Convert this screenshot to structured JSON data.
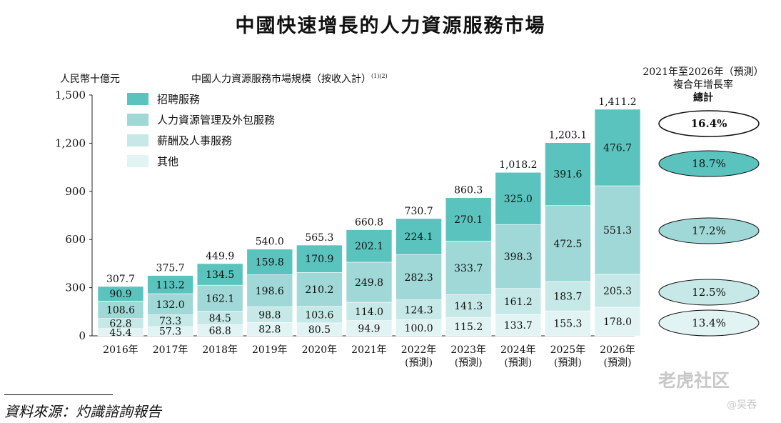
{
  "title": "中國快速增長的人力資源服務市場",
  "unit_label": "人民幣十億元",
  "subtitle": "中國人力資源服務市場規模（按收入計）",
  "subtitle_note": "(1)(2)",
  "cagr_header": {
    "line1": "2021年至2026年（預測）",
    "line2": "複合年增長率",
    "total_label": "總計"
  },
  "source": "資料來源：灼識諮詢報告",
  "watermark": "老虎社区",
  "watermark_author": "@吴吞",
  "colors": {
    "recruitment": "#5bc3be",
    "hr_outsourcing": "#9fd8d6",
    "payroll": "#c6e9e8",
    "other": "#e1f3f3"
  },
  "chart_data": {
    "type": "bar",
    "stacked": true,
    "title": "中國人力資源服務市場規模（按收入計）",
    "ylabel": "人民幣十億元",
    "ylim": [
      0,
      1500
    ],
    "yticks": [
      0,
      300,
      600,
      900,
      1200,
      1500
    ],
    "ytick_labels": [
      "0",
      "300",
      "600",
      "900",
      "1,200",
      "1,500"
    ],
    "categories": [
      "2016年",
      "2017年",
      "2018年",
      "2019年",
      "2020年",
      "2021年",
      "2022年",
      "2023年",
      "2024年",
      "2025年",
      "2026年"
    ],
    "category_notes": [
      "",
      "",
      "",
      "",
      "",
      "",
      "(預測)",
      "(預測)",
      "(預測)",
      "(預測)",
      "(預測)"
    ],
    "series": [
      {
        "name": "其他",
        "values": [
          45.4,
          57.3,
          68.8,
          82.8,
          80.5,
          94.9,
          100.0,
          115.2,
          133.7,
          155.3,
          178.0
        ],
        "labels": [
          "45.4",
          "57.3",
          "68.8",
          "82.8",
          "80.5",
          "94.9",
          "100.0",
          "115.2",
          "133.7",
          "155.3",
          "178.0"
        ],
        "color": "#e1f3f3"
      },
      {
        "name": "薪酬及人事服務",
        "values": [
          62.8,
          73.3,
          84.5,
          98.8,
          103.6,
          114.0,
          124.3,
          141.3,
          161.2,
          183.7,
          205.3
        ],
        "labels": [
          "62.8",
          "73.3",
          "84.5",
          "98.8",
          "103.6",
          "114.0",
          "124.3",
          "141.3",
          "161.2",
          "183.7",
          "205.3"
        ],
        "color": "#c6e9e8"
      },
      {
        "name": "人力資源管理及外包服務",
        "values": [
          108.6,
          132.0,
          162.1,
          198.6,
          210.2,
          249.8,
          282.3,
          333.7,
          398.3,
          472.5,
          551.3
        ],
        "labels": [
          "108.6",
          "132.0",
          "162.1",
          "198.6",
          "210.2",
          "249.8",
          "282.3",
          "333.7",
          "398.3",
          "472.5",
          "551.3"
        ],
        "color": "#9fd8d6"
      },
      {
        "name": "招聘服務",
        "values": [
          90.9,
          113.2,
          134.5,
          159.8,
          170.9,
          202.1,
          224.1,
          270.1,
          325.0,
          391.6,
          476.7
        ],
        "labels": [
          "90.9",
          "113.2",
          "134.5",
          "159.8",
          "170.9",
          "202.1",
          "224.1",
          "270.1",
          "325.0",
          "391.6",
          "476.7"
        ],
        "color": "#5bc3be"
      }
    ],
    "totals": [
      307.7,
      375.7,
      449.9,
      540.0,
      565.3,
      660.8,
      730.7,
      860.3,
      1018.2,
      1203.1,
      1411.2
    ],
    "total_labels": [
      "307.7",
      "375.7",
      "449.9",
      "540.0",
      "565.3",
      "660.8",
      "730.7",
      "860.3",
      "1,018.2",
      "1,203.1",
      "1,411.2"
    ],
    "legend": [
      {
        "name": "招聘服務",
        "color": "#5bc3be"
      },
      {
        "name": "人力資源管理及外包服務",
        "color": "#9fd8d6"
      },
      {
        "name": "薪酬及人事服務",
        "color": "#c6e9e8"
      },
      {
        "name": "其他",
        "color": "#e1f3f3"
      }
    ],
    "legend_position": "top-left",
    "cagr": [
      {
        "segment": "總計",
        "value": "16.4%",
        "color": "#ffffff",
        "bold": true
      },
      {
        "segment": "招聘服務",
        "value": "18.7%",
        "color": "#5bc3be",
        "bold": false
      },
      {
        "segment": "人力資源管理及外包服務",
        "value": "17.2%",
        "color": "#9fd8d6",
        "bold": false
      },
      {
        "segment": "薪酬及人事服務",
        "value": "12.5%",
        "color": "#c6e9e8",
        "bold": false
      },
      {
        "segment": "其他",
        "value": "13.4%",
        "color": "#e1f3f3",
        "bold": false
      }
    ]
  }
}
